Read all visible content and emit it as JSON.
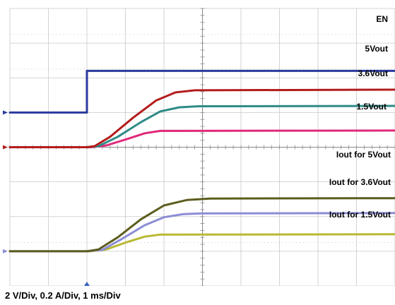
{
  "footer": "2 V/Div, 0.2 A/Div, 1 ms/Div",
  "chart_data": {
    "type": "line",
    "xlabel": "",
    "ylabel": "",
    "xlim": [
      0,
      10
    ],
    "ylim": [
      0,
      8
    ],
    "x_unit_per_div": "1 ms",
    "grid": true,
    "grid_divisions": {
      "x": 10,
      "y": 8
    },
    "series": [
      {
        "name": "EN",
        "color": "#2a3a9e",
        "points": [
          [
            0,
            5.0
          ],
          [
            2.0,
            5.0
          ],
          [
            2.0,
            6.2
          ],
          [
            10,
            6.2
          ]
        ]
      },
      {
        "name": "5Vout",
        "color": "#b31c1c",
        "points": [
          [
            0,
            4.0
          ],
          [
            2.0,
            4.0
          ],
          [
            2.2,
            4.03
          ],
          [
            2.6,
            4.3
          ],
          [
            3.2,
            4.85
          ],
          [
            3.8,
            5.35
          ],
          [
            4.3,
            5.58
          ],
          [
            4.8,
            5.64
          ],
          [
            10,
            5.66
          ]
        ]
      },
      {
        "name": "3.6Vout",
        "color": "#2e8b86",
        "points": [
          [
            0,
            4.0
          ],
          [
            2.0,
            4.0
          ],
          [
            2.3,
            4.03
          ],
          [
            2.8,
            4.3
          ],
          [
            3.4,
            4.72
          ],
          [
            3.9,
            5.03
          ],
          [
            4.4,
            5.15
          ],
          [
            4.9,
            5.18
          ],
          [
            10,
            5.19
          ]
        ]
      },
      {
        "name": "1.5Vout",
        "color": "#e0287a",
        "points": [
          [
            0,
            4.0
          ],
          [
            2.1,
            4.0
          ],
          [
            2.5,
            4.05
          ],
          [
            3.0,
            4.22
          ],
          [
            3.5,
            4.4
          ],
          [
            3.9,
            4.47
          ],
          [
            10,
            4.48
          ]
        ]
      },
      {
        "name": "Iout for 5Vout",
        "color": "#5c5c1e",
        "points": [
          [
            0,
            1.0
          ],
          [
            2.0,
            1.0
          ],
          [
            2.3,
            1.05
          ],
          [
            2.8,
            1.4
          ],
          [
            3.4,
            1.92
          ],
          [
            4.0,
            2.32
          ],
          [
            4.6,
            2.48
          ],
          [
            5.2,
            2.52
          ],
          [
            10,
            2.53
          ]
        ]
      },
      {
        "name": "Iout for 3.6Vout",
        "color": "#8c8cd6",
        "points": [
          [
            0,
            1.0
          ],
          [
            2.0,
            1.0
          ],
          [
            2.4,
            1.04
          ],
          [
            2.9,
            1.35
          ],
          [
            3.5,
            1.75
          ],
          [
            4.0,
            1.98
          ],
          [
            4.5,
            2.07
          ],
          [
            5.0,
            2.09
          ],
          [
            10,
            2.1
          ]
        ]
      },
      {
        "name": "Iout for 1.5Vout",
        "color": "#b8b832",
        "points": [
          [
            0,
            1.0
          ],
          [
            2.1,
            1.0
          ],
          [
            2.5,
            1.05
          ],
          [
            3.0,
            1.25
          ],
          [
            3.5,
            1.42
          ],
          [
            3.9,
            1.48
          ],
          [
            10,
            1.49
          ]
        ]
      }
    ]
  }
}
